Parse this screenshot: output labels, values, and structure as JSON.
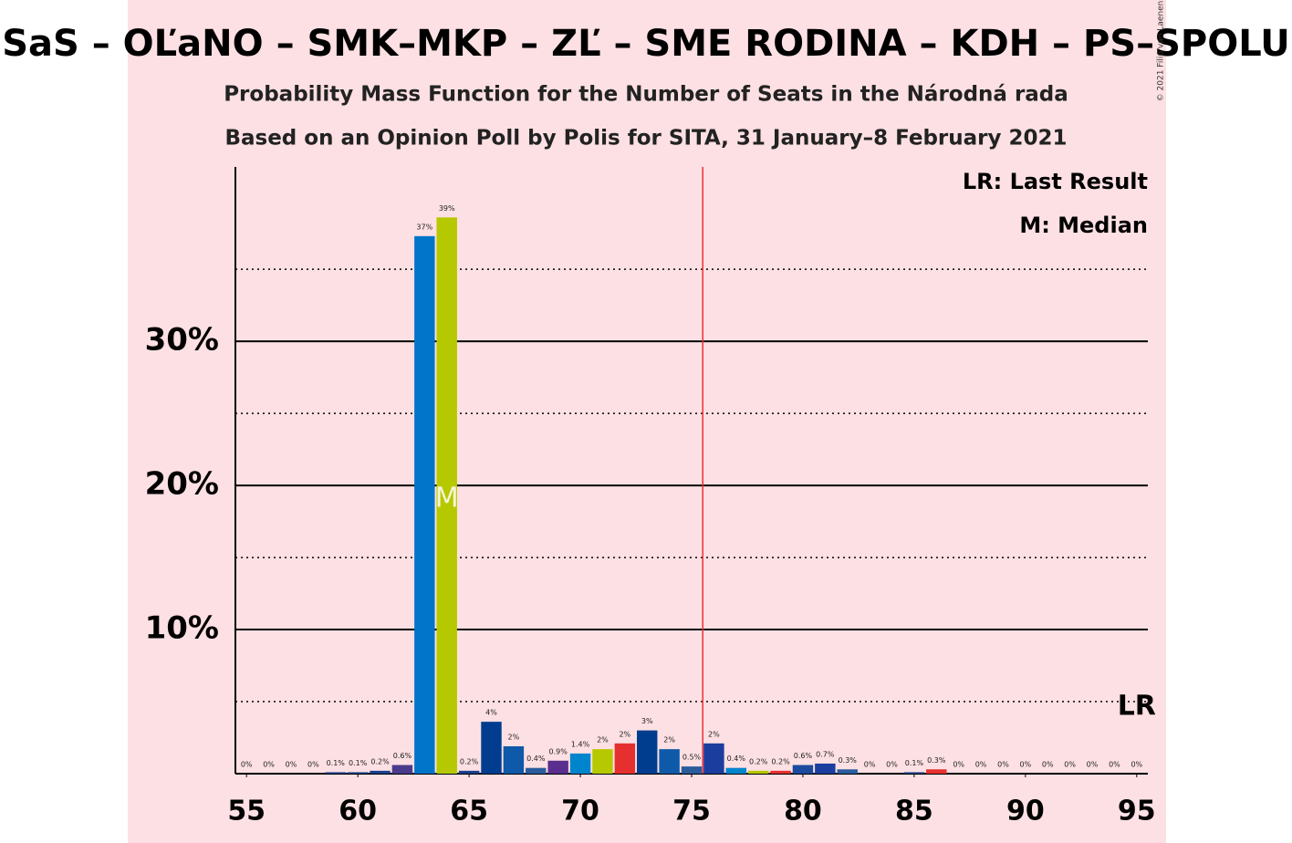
{
  "chart_data": {
    "type": "bar",
    "title": "SaS – OĽaNO – SMK–MKP – ZĽ – SME RODINA – KDH – PS–SPOLU",
    "subtitle": "Probability Mass Function for the Number of Seats in the Národná rada",
    "subtitle2": "Based on an Opinion Poll by Polis for SITA, 31 January–8 February 2021",
    "copyright": "© 2021 Filip van Laenen",
    "legend": [
      "LR: Last Result",
      "M: Median"
    ],
    "x": [
      55,
      56,
      57,
      58,
      59,
      60,
      61,
      62,
      63,
      64,
      65,
      66,
      67,
      68,
      69,
      70,
      71,
      72,
      73,
      74,
      75,
      76,
      77,
      78,
      79,
      80,
      81,
      82,
      83,
      84,
      85,
      86,
      87,
      88,
      89,
      90,
      91,
      92,
      93,
      94,
      95
    ],
    "values": [
      0,
      0,
      0,
      0,
      0.1,
      0.1,
      0.2,
      0.6,
      37.3,
      38.6,
      0.2,
      3.6,
      1.9,
      0.4,
      0.9,
      1.4,
      1.7,
      2.1,
      3.0,
      1.7,
      0.5,
      2.1,
      0.4,
      0.2,
      0.2,
      0.6,
      0.7,
      0.3,
      0,
      0,
      0.1,
      0.3,
      0,
      0,
      0,
      0,
      0,
      0,
      0,
      0,
      0
    ],
    "value_labels": [
      "0%",
      "0%",
      "0%",
      "0%",
      "0.1%",
      "0.1%",
      "0.2%",
      "0.6%",
      "37%",
      "39%",
      "0.2%",
      "4%",
      "2%",
      "0.4%",
      "0.9%",
      "1.4%",
      "2%",
      "2%",
      "3%",
      "2%",
      "0.5%",
      "2%",
      "0.4%",
      "0.2%",
      "0.2%",
      "0.6%",
      "0.7%",
      "0.3%",
      "0%",
      "0%",
      "0.1%",
      "0.3%",
      "0%",
      "0%",
      "0%",
      "0%",
      "0%",
      "0%",
      "0%",
      "0%",
      "0%"
    ],
    "colors": [
      "#1a3f8a",
      "#1a3f8a",
      "#1a3f8a",
      "#1a3f8a",
      "#1a3f8a",
      "#1a3f8a",
      "#1a3f8a",
      "#4a3b8c",
      "#0075c9",
      "#b6c900",
      "#1a3f8a",
      "#003d8f",
      "#0f5aa8",
      "#2b5c9c",
      "#5a2e8e",
      "#0085cc",
      "#b6c900",
      "#e63030",
      "#003d8f",
      "#0f5aa8",
      "#2b5c9c",
      "#1b3d9e",
      "#0085cc",
      "#b6c900",
      "#e63030",
      "#1b4a9e",
      "#1b3d9e",
      "#2b5c9c",
      "#1a3f8a",
      "#1a3f8a",
      "#1a3f8a",
      "#e63030",
      "#1a3f8a",
      "#1a3f8a",
      "#1a3f8a",
      "#1a3f8a",
      "#1a3f8a",
      "#1a3f8a",
      "#1a3f8a",
      "#1a3f8a",
      "#1a3f8a"
    ],
    "xlim": [
      54.5,
      95.5
    ],
    "xticks": [
      55,
      60,
      65,
      70,
      75,
      80,
      85,
      90,
      95
    ],
    "ylim": [
      0,
      42.1
    ],
    "yticks": [
      {
        "value": 10,
        "label": "10%"
      },
      {
        "value": 20,
        "label": "20%"
      },
      {
        "value": 30,
        "label": "30%"
      }
    ],
    "minor_yticks": [
      5,
      15,
      25,
      35
    ],
    "grid": true,
    "majority": 76,
    "median": 64,
    "median_label": "M",
    "last_result": 95,
    "last_result_label": "LR"
  }
}
